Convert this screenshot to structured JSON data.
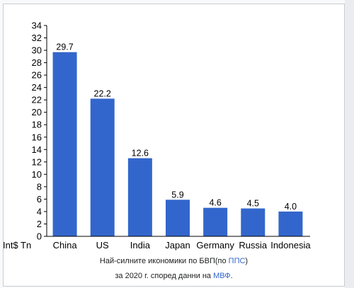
{
  "chart_data": {
    "type": "bar",
    "categories": [
      "China",
      "US",
      "India",
      "Japan",
      "Germany",
      "Russia",
      "Indonesia"
    ],
    "values": [
      29.7,
      22.2,
      12.6,
      5.9,
      4.6,
      4.5,
      4.0
    ],
    "value_labels": [
      "29.7",
      "22.2",
      "12.6",
      "5.9",
      "4.6",
      "4.5",
      "4.0"
    ],
    "ylim": [
      0,
      34
    ],
    "ytick_step": 2,
    "ylabel": "Int$ Tn",
    "bar_color": "#3366cc",
    "grid": false
  },
  "caption": {
    "line1_prefix": "Най-силните икономики по БВП(по ",
    "line1_link": "ППС",
    "line1_suffix": ")",
    "line2_prefix": "за 2020 г. според данни на ",
    "line2_link": "МВФ",
    "line2_suffix": "."
  },
  "colors": {
    "link": "#3366cc",
    "frame_border": "#c8ccd1"
  }
}
